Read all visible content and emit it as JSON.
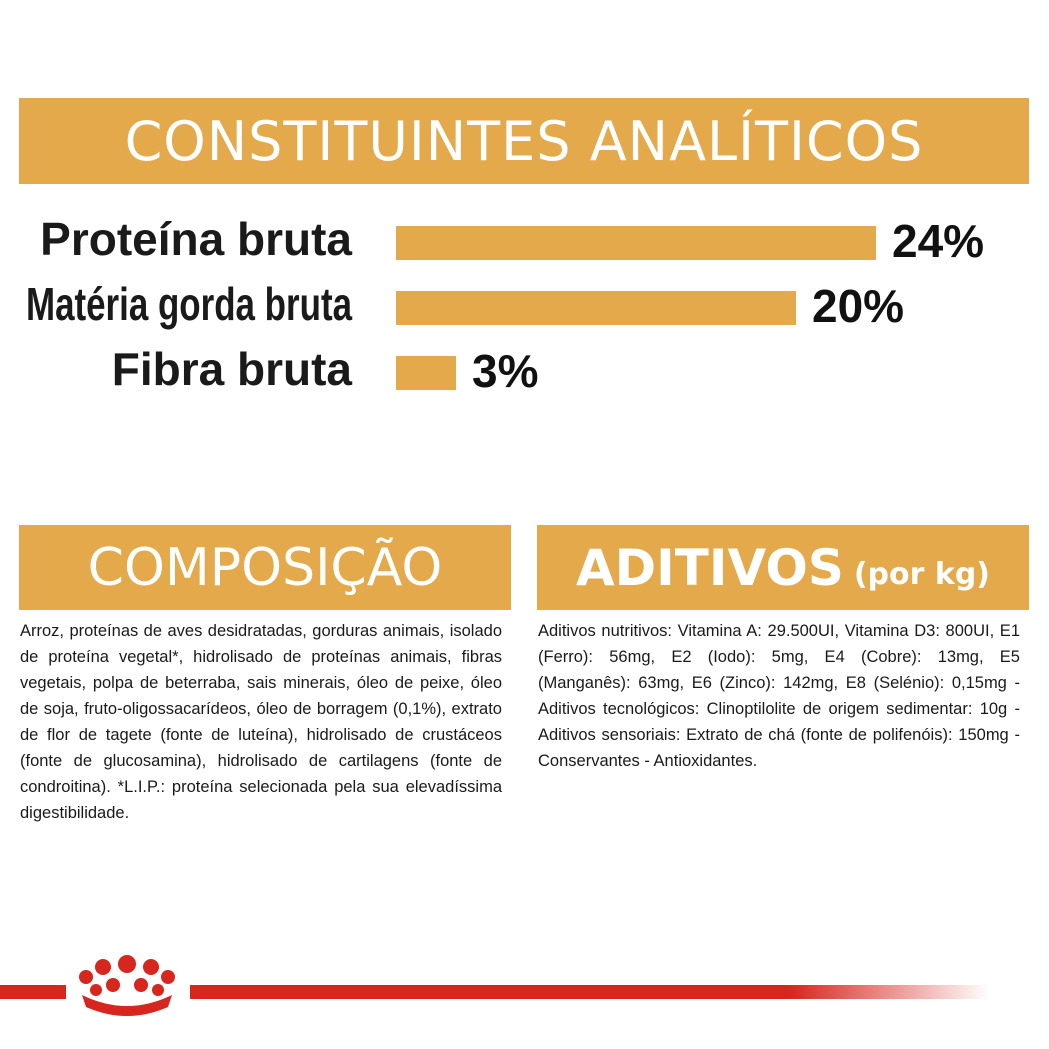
{
  "header": {
    "title": "CONSTITUINTES ANALÍTICOS"
  },
  "chart_data": {
    "type": "bar",
    "orientation": "horizontal",
    "categories": [
      "Proteína bruta",
      "Matéria gorda bruta",
      "Fibra bruta"
    ],
    "values": [
      24,
      20,
      3
    ],
    "value_labels": [
      "24%",
      "20%",
      "3%"
    ],
    "color": "#e3a94a"
  },
  "composition": {
    "title": "COMPOSIÇÃO",
    "text": "Arroz, proteínas de aves desidratadas, gorduras animais, isolado de proteína vegetal*, hidrolisado de proteínas animais, fibras vegetais, polpa de beterraba, sais minerais, óleo de peixe, óleo de soja, fruto-oligossacarídeos, óleo de borragem (0,1%), extrato de flor de tagete (fonte de luteína), hidrolisado de crustáceos (fonte de glucosamina), hidrolisado de cartilagens (fonte de condroitina). *L.I.P.: proteína selecionada pela sua elevadíssima digestibilidade."
  },
  "additives": {
    "title": "ADITIVOS",
    "unit": "(por kg)",
    "text": "Aditivos nutritivos: Vitamina A: 29.500UI, Vitamina D3: 800UI, E1 (Ferro): 56mg, E2 (Iodo): 5mg, E4 (Cobre): 13mg, E5 (Manganês): 63mg, E6 (Zinco): 142mg, E8 (Selénio): 0,15mg - Aditivos tecnológicos: Clinoptilolite de origem sedimentar: 10g - Aditivos sensoriais: Extrato de chá (fonte de polifenóis): 150mg - Conservantes - Antioxidantes."
  }
}
